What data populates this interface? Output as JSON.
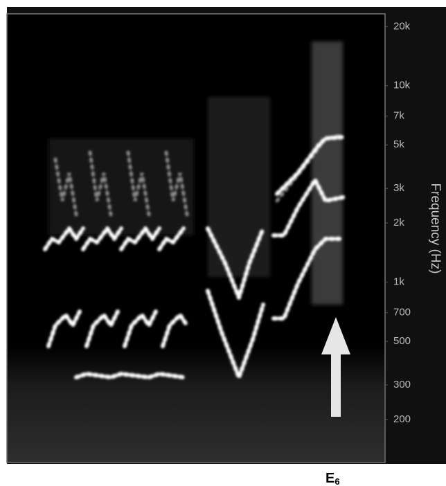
{
  "chart_data": {
    "type": "spectrogram",
    "y_label": "Frequency (Hz)",
    "log_scale": true,
    "ylim": [
      121,
      23200
    ],
    "yticks": [
      {
        "value": 20000,
        "label": "20k"
      },
      {
        "value": 10000,
        "label": "10k"
      },
      {
        "value": 7000,
        "label": "7k"
      },
      {
        "value": 5000,
        "label": "5k"
      },
      {
        "value": 3000,
        "label": "3k"
      },
      {
        "value": 2000,
        "label": "2k"
      },
      {
        "value": 1000,
        "label": "1k"
      },
      700,
      500,
      300,
      200
    ],
    "annotation": {
      "text": "E",
      "subscript": "6"
    }
  }
}
